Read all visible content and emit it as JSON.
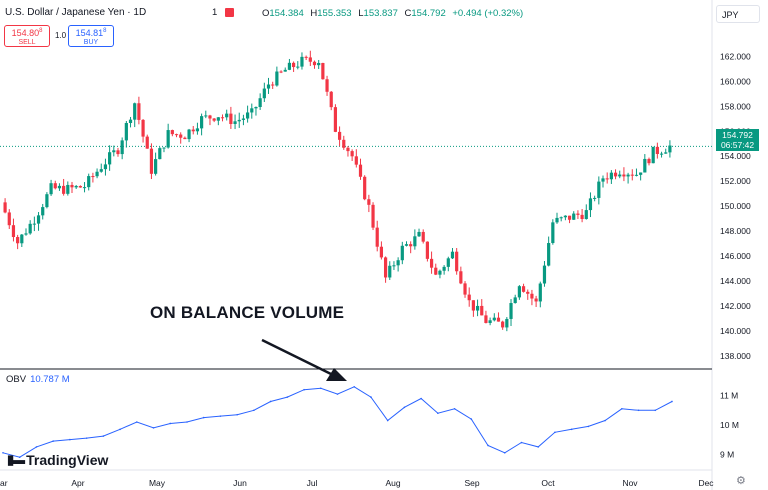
{
  "header": {
    "symbol_title": "U.S. Dollar / Japanese Yen · 1D",
    "alerts_count": "1",
    "ohlc": {
      "open_label": "O",
      "open": "154.384",
      "high_label": "H",
      "high": "155.353",
      "low_label": "L",
      "low": "153.837",
      "close_label": "C",
      "close": "154.792",
      "change": "+0.494 (+0.32%)"
    },
    "currency_button": "JPY"
  },
  "trade": {
    "sell_price": "154.80",
    "sell_price_sup": "8",
    "sell_label": "SELL",
    "quantity": "1.0",
    "buy_price": "154.81",
    "buy_price_sup": "8",
    "buy_label": "BUY"
  },
  "last_price": {
    "price": "154.792",
    "countdown": "06:57:42"
  },
  "indicator": {
    "name": "OBV",
    "value": "10.787 M"
  },
  "annotation": {
    "text": "ON BALANCE VOLUME"
  },
  "brand": {
    "name": "TradingView"
  },
  "colors": {
    "up": "#089981",
    "down": "#f23645",
    "obv": "#2962ff",
    "axis_text": "#131722"
  },
  "chart_data": [
    {
      "type": "candlestick",
      "title": "U.S. Dollar / Japanese Yen · 1D",
      "x_tick_labels": [
        "ar",
        "Apr",
        "May",
        "Jun",
        "Jul",
        "Aug",
        "Sep",
        "Oct",
        "Nov",
        "Dec"
      ],
      "y_tick_labels": [
        "162.000",
        "160.000",
        "158.000",
        "156.000",
        "154.000",
        "152.000",
        "150.000",
        "148.000",
        "146.000",
        "144.000",
        "142.000",
        "140.000",
        "138.000"
      ],
      "ylim": [
        137.5,
        163.8
      ],
      "grid": false,
      "last_price_line": 154.792,
      "series": [
        {
          "x": "Mar 1",
          "close": 150.3
        },
        {
          "x": "Mar 8",
          "close": 147.1
        },
        {
          "x": "Mar 15",
          "close": 149.0
        },
        {
          "x": "Mar 22",
          "close": 151.4
        },
        {
          "x": "Mar 29",
          "close": 151.35
        },
        {
          "x": "Apr 5",
          "close": 151.6
        },
        {
          "x": "Apr 12",
          "close": 153.2
        },
        {
          "x": "Apr 19",
          "close": 154.6
        },
        {
          "x": "Apr 26",
          "close": 158.3
        },
        {
          "x": "May 3",
          "close": 152.9
        },
        {
          "x": "May 10",
          "close": 155.8
        },
        {
          "x": "May 17",
          "close": 155.7
        },
        {
          "x": "May 24",
          "close": 157.0
        },
        {
          "x": "May 31",
          "close": 157.3
        },
        {
          "x": "Jun 7",
          "close": 156.8
        },
        {
          "x": "Jun 14",
          "close": 157.4
        },
        {
          "x": "Jun 21",
          "close": 159.8
        },
        {
          "x": "Jun 28",
          "close": 160.9
        },
        {
          "x": "Jul 5",
          "close": 161.6
        },
        {
          "x": "Jul 10",
          "close": 161.7
        },
        {
          "x": "Jul 17",
          "close": 156.2
        },
        {
          "x": "Jul 24",
          "close": 154.0
        },
        {
          "x": "Jul 31",
          "close": 149.9
        },
        {
          "x": "Aug 5",
          "close": 144.2
        },
        {
          "x": "Aug 9",
          "close": 146.6
        },
        {
          "x": "Aug 16",
          "close": 147.6
        },
        {
          "x": "Aug 23",
          "close": 144.4
        },
        {
          "x": "Aug 30",
          "close": 146.2
        },
        {
          "x": "Sep 6",
          "close": 142.3
        },
        {
          "x": "Sep 13",
          "close": 140.8
        },
        {
          "x": "Sep 16",
          "close": 140.5
        },
        {
          "x": "Sep 20",
          "close": 143.9
        },
        {
          "x": "Sep 27",
          "close": 142.2
        },
        {
          "x": "Oct 4",
          "close": 148.7
        },
        {
          "x": "Oct 11",
          "close": 149.1
        },
        {
          "x": "Oct 18",
          "close": 149.5
        },
        {
          "x": "Oct 25",
          "close": 152.3
        },
        {
          "x": "Nov 1",
          "close": 152.9
        },
        {
          "x": "Nov 8",
          "close": 152.6
        },
        {
          "x": "Nov 15",
          "close": 154.3
        },
        {
          "x": "Nov 18",
          "close": 154.8
        }
      ]
    },
    {
      "type": "line",
      "title": "OBV",
      "y_tick_labels": [
        "11 M",
        "10 M",
        "9 M"
      ],
      "ylim": [
        8.6,
        11.6
      ],
      "grid": false,
      "series": [
        {
          "name": "OBV",
          "values": [
            {
              "x": "Mar 1",
              "y": 9.05
            },
            {
              "x": "Mar 8",
              "y": 8.9
            },
            {
              "x": "Mar 15",
              "y": 9.25
            },
            {
              "x": "Mar 22",
              "y": 9.45
            },
            {
              "x": "Mar 29",
              "y": 9.5
            },
            {
              "x": "Apr 5",
              "y": 9.55
            },
            {
              "x": "Apr 12",
              "y": 9.62
            },
            {
              "x": "Apr 19",
              "y": 9.85
            },
            {
              "x": "Apr 26",
              "y": 10.1
            },
            {
              "x": "May 3",
              "y": 9.9
            },
            {
              "x": "May 10",
              "y": 10.05
            },
            {
              "x": "May 17",
              "y": 10.1
            },
            {
              "x": "May 24",
              "y": 10.25
            },
            {
              "x": "May 31",
              "y": 10.3
            },
            {
              "x": "Jun 7",
              "y": 10.35
            },
            {
              "x": "Jun 14",
              "y": 10.5
            },
            {
              "x": "Jun 21",
              "y": 10.8
            },
            {
              "x": "Jun 28",
              "y": 10.95
            },
            {
              "x": "Jul 5",
              "y": 11.2
            },
            {
              "x": "Jul 10",
              "y": 11.25
            },
            {
              "x": "Jul 17",
              "y": 11.05
            },
            {
              "x": "Jul 24",
              "y": 11.3
            },
            {
              "x": "Jul 31",
              "y": 10.95
            },
            {
              "x": "Aug 5",
              "y": 10.15
            },
            {
              "x": "Aug 9",
              "y": 10.6
            },
            {
              "x": "Aug 16",
              "y": 10.9
            },
            {
              "x": "Aug 23",
              "y": 10.4
            },
            {
              "x": "Aug 30",
              "y": 10.55
            },
            {
              "x": "Sep 6",
              "y": 10.2
            },
            {
              "x": "Sep 13",
              "y": 9.3
            },
            {
              "x": "Sep 16",
              "y": 9.05
            },
            {
              "x": "Sep 20",
              "y": 9.4
            },
            {
              "x": "Sep 27",
              "y": 9.25
            },
            {
              "x": "Oct 4",
              "y": 9.75
            },
            {
              "x": "Oct 11",
              "y": 9.85
            },
            {
              "x": "Oct 18",
              "y": 9.95
            },
            {
              "x": "Oct 25",
              "y": 10.15
            },
            {
              "x": "Nov 1",
              "y": 10.55
            },
            {
              "x": "Nov 8",
              "y": 10.5
            },
            {
              "x": "Nov 15",
              "y": 10.5
            },
            {
              "x": "Nov 18",
              "y": 10.8
            }
          ]
        }
      ]
    }
  ]
}
